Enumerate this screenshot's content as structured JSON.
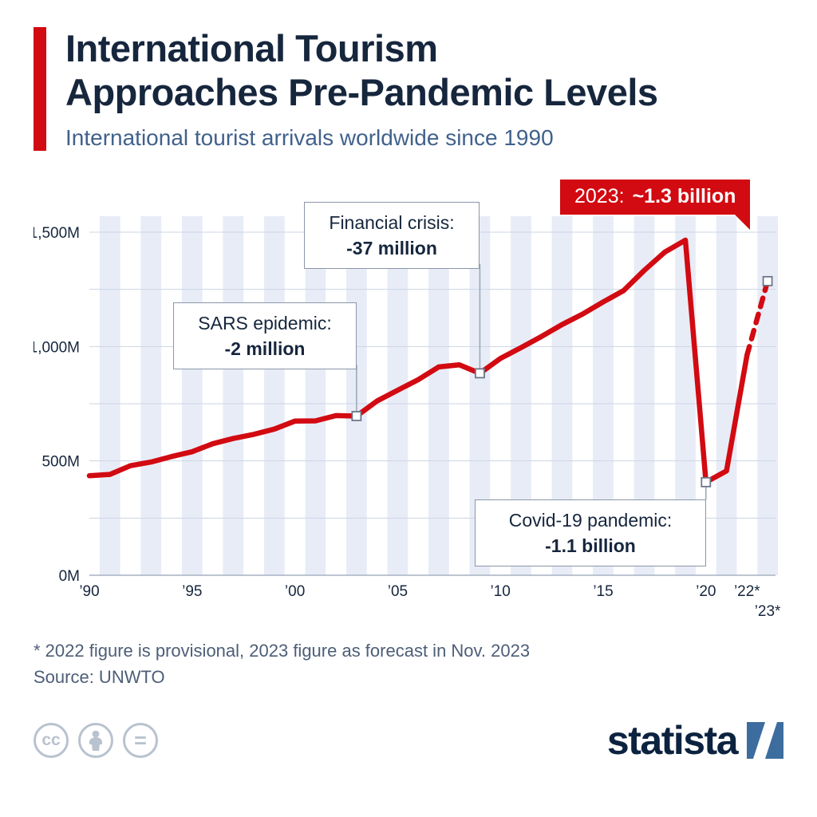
{
  "colors": {
    "line": "#d20a11",
    "stripe": "#e8ecf7",
    "grid": "#ccd5e3",
    "axis": "#a7b1c2",
    "connector": "#9aa4b5",
    "marker_border": "#6b7688",
    "title_navy": "#16263d",
    "subtitle_blue": "#41618c",
    "logo_blue": "#3d6d9e"
  },
  "header": {
    "title_line1": "International Tourism",
    "title_line2": "Approaches Pre-Pandemic Levels",
    "subtitle": "International tourist arrivals worldwide since 1990"
  },
  "callout": {
    "prefix": "2023:",
    "value": "~1.3 billion"
  },
  "annotations": [
    {
      "label": "SARS epidemic:",
      "value_label": "-2 million",
      "year": 2003,
      "value": 696
    },
    {
      "label": "Financial crisis:",
      "value_label": "-37 million",
      "year": 2009,
      "value": 883
    },
    {
      "label": "Covid-19 pandemic:",
      "value_label": "-1.1 billion",
      "year": 2020,
      "value": 407
    }
  ],
  "chart_data": {
    "type": "line",
    "title": "International tourist arrivals worldwide since 1990",
    "unit": "million arrivals",
    "x": [
      1990,
      1991,
      1992,
      1993,
      1994,
      1995,
      1996,
      1997,
      1998,
      1999,
      2000,
      2001,
      2002,
      2003,
      2004,
      2005,
      2006,
      2007,
      2008,
      2009,
      2010,
      2011,
      2012,
      2013,
      2014,
      2015,
      2016,
      2017,
      2018,
      2019,
      2020,
      2021,
      2022,
      2023
    ],
    "values": [
      435,
      441,
      479,
      495,
      519,
      540,
      575,
      598,
      616,
      639,
      674,
      675,
      698,
      696,
      762,
      809,
      855,
      911,
      920,
      883,
      948,
      995,
      1044,
      1096,
      1142,
      1195,
      1245,
      1333,
      1413,
      1465,
      407,
      456,
      963,
      1286
    ],
    "ylim": [
      0,
      1500
    ],
    "yticks": [
      {
        "label": "0M",
        "value": 0
      },
      {
        "label": "500M",
        "value": 500
      },
      {
        "label": "1,000M",
        "value": 1000
      },
      {
        "label": "1,500M",
        "value": 1500
      }
    ],
    "xticks": [
      {
        "label": "’90",
        "year": 1990
      },
      {
        "label": "’95",
        "year": 1995
      },
      {
        "label": "’00",
        "year": 2000
      },
      {
        "label": "’05",
        "year": 2005
      },
      {
        "label": "’10",
        "year": 2010
      },
      {
        "label": "’15",
        "year": 2015
      },
      {
        "label": "’20",
        "year": 2020
      },
      {
        "label": "’22*",
        "year": 2022
      },
      {
        "label": "’23*",
        "year": 2023,
        "row": 2
      }
    ],
    "dash_from_year": 2022,
    "end_marker": {
      "year": 2023,
      "value": 1286
    },
    "grid": "on",
    "legend": "none"
  },
  "footer": {
    "note": "* 2022 figure is provisional, 2023 figure as forecast in Nov. 2023",
    "source": "Source: UNWTO"
  },
  "branding": {
    "logo_text": "statista",
    "cc_glyph": "cc",
    "nd_glyph": "="
  }
}
